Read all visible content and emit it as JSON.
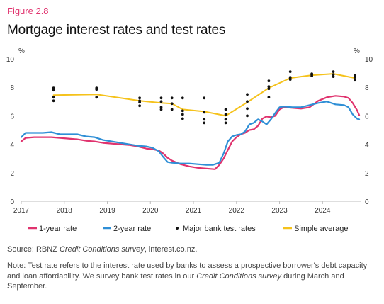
{
  "figure_label": "Figure 2.8",
  "title": "Mortgage interest rates and test rates",
  "source": {
    "prefix": "Source: RBNZ ",
    "italic": "Credit Conditions survey",
    "suffix": ", interest.co.nz."
  },
  "note": {
    "part1": "Note: Test rate refers to the interest rate used by banks to assess a prospective borrower's debt capacity and loan affordability. We survey bank test rates in our ",
    "italic": "Credit Conditions survey",
    "part2": " during March and September."
  },
  "colors": {
    "one_year": "#e0336e",
    "two_year": "#2f8fd6",
    "simple_average": "#f5c21b",
    "test_dots": "#111111",
    "axis": "#bdbdbd"
  },
  "chart_data": {
    "type": "line",
    "ylim": [
      0,
      10
    ],
    "yticks": [
      0,
      2,
      4,
      6,
      8,
      10
    ],
    "y_unit_label_left": "%",
    "y_unit_label_right": "%",
    "xlim": [
      2017.0,
      2024.9
    ],
    "xticks": [
      "2017",
      "2018",
      "2019",
      "2020",
      "2021",
      "2022",
      "2023",
      "2024"
    ],
    "legend_position": "bottom",
    "grid": false,
    "series": [
      {
        "name": "1-year rate",
        "key": "one_year",
        "x": [
          2017.0,
          2017.1,
          2017.3,
          2017.5,
          2017.7,
          2017.9,
          2018.1,
          2018.3,
          2018.5,
          2018.7,
          2018.9,
          2019.1,
          2019.3,
          2019.5,
          2019.7,
          2019.9,
          2020.05,
          2020.2,
          2020.3,
          2020.4,
          2020.5,
          2020.7,
          2020.9,
          2021.1,
          2021.3,
          2021.5,
          2021.6,
          2021.7,
          2021.8,
          2021.9,
          2022.0,
          2022.1,
          2022.2,
          2022.3,
          2022.4,
          2022.5,
          2022.6,
          2022.7,
          2022.8,
          2022.9,
          2023.0,
          2023.1,
          2023.3,
          2023.5,
          2023.7,
          2023.9,
          2024.1,
          2024.3,
          2024.5,
          2024.6,
          2024.7,
          2024.8,
          2024.85
        ],
        "y": [
          4.2,
          4.45,
          4.5,
          4.5,
          4.5,
          4.45,
          4.4,
          4.35,
          4.25,
          4.2,
          4.1,
          4.05,
          4.0,
          3.95,
          3.85,
          3.7,
          3.65,
          3.55,
          3.35,
          3.05,
          2.85,
          2.6,
          2.45,
          2.35,
          2.3,
          2.25,
          2.55,
          3.0,
          3.6,
          4.2,
          4.5,
          4.7,
          4.8,
          5.0,
          5.05,
          5.3,
          5.8,
          5.95,
          5.9,
          6.0,
          6.45,
          6.6,
          6.55,
          6.5,
          6.6,
          7.05,
          7.3,
          7.4,
          7.35,
          7.25,
          6.9,
          6.4,
          6.05
        ]
      },
      {
        "name": "2-year rate",
        "key": "two_year",
        "x": [
          2017.0,
          2017.1,
          2017.3,
          2017.5,
          2017.7,
          2017.9,
          2018.1,
          2018.3,
          2018.5,
          2018.7,
          2018.9,
          2019.1,
          2019.3,
          2019.5,
          2019.7,
          2019.9,
          2020.05,
          2020.2,
          2020.3,
          2020.4,
          2020.5,
          2020.7,
          2020.9,
          2021.1,
          2021.3,
          2021.45,
          2021.6,
          2021.7,
          2021.8,
          2021.9,
          2022.0,
          2022.1,
          2022.2,
          2022.3,
          2022.4,
          2022.5,
          2022.6,
          2022.7,
          2022.8,
          2022.9,
          2023.0,
          2023.1,
          2023.3,
          2023.5,
          2023.7,
          2023.9,
          2024.1,
          2024.3,
          2024.5,
          2024.6,
          2024.7,
          2024.8,
          2024.85
        ],
        "y": [
          4.5,
          4.8,
          4.8,
          4.8,
          4.85,
          4.7,
          4.7,
          4.7,
          4.55,
          4.5,
          4.3,
          4.2,
          4.1,
          4.0,
          3.9,
          3.85,
          3.75,
          3.5,
          3.1,
          2.75,
          2.7,
          2.65,
          2.65,
          2.6,
          2.55,
          2.55,
          2.7,
          3.35,
          4.2,
          4.55,
          4.65,
          4.7,
          4.9,
          5.4,
          5.5,
          5.75,
          5.6,
          5.4,
          5.75,
          6.2,
          6.6,
          6.65,
          6.6,
          6.6,
          6.75,
          6.9,
          7.0,
          6.8,
          6.75,
          6.6,
          6.1,
          5.8,
          5.75
        ]
      },
      {
        "name": "Simple average",
        "key": "simple_average",
        "x": [
          2017.75,
          2018.75,
          2019.75,
          2020.25,
          2020.5,
          2020.75,
          2021.25,
          2021.75,
          2022.25,
          2022.75,
          2023.25,
          2023.75,
          2024.25,
          2024.75
        ],
        "y": [
          7.45,
          7.5,
          7.05,
          6.9,
          6.85,
          6.45,
          6.3,
          6.0,
          6.95,
          7.95,
          8.65,
          8.85,
          8.95,
          8.65
        ]
      }
    ],
    "scatter": {
      "name": "Major bank test rates",
      "key": "test_dots",
      "x": [
        2017.75,
        2017.75,
        2017.75,
        2017.75,
        2018.75,
        2018.75,
        2018.75,
        2019.75,
        2019.75,
        2019.75,
        2019.75,
        2020.25,
        2020.25,
        2020.25,
        2020.25,
        2020.5,
        2020.5,
        2020.5,
        2020.75,
        2020.75,
        2020.75,
        2020.75,
        2021.25,
        2021.25,
        2021.25,
        2021.25,
        2021.75,
        2021.75,
        2021.75,
        2021.75,
        2022.25,
        2022.25,
        2022.25,
        2022.25,
        2022.75,
        2022.75,
        2022.75,
        2022.75,
        2023.25,
        2023.25,
        2023.25,
        2023.25,
        2023.75,
        2023.75,
        2023.75,
        2024.25,
        2024.25,
        2024.25,
        2024.75,
        2024.75,
        2024.75
      ],
      "y": [
        7.95,
        7.8,
        7.3,
        7.05,
        7.95,
        7.85,
        7.3,
        7.25,
        7.05,
        6.95,
        6.7,
        7.25,
        7.0,
        6.6,
        6.45,
        7.25,
        6.85,
        6.45,
        7.25,
        6.35,
        6.1,
        5.8,
        7.25,
        6.25,
        5.75,
        5.5,
        6.45,
        6.1,
        5.75,
        5.5,
        7.5,
        7.0,
        6.5,
        6.0,
        8.45,
        8.05,
        7.9,
        7.3,
        9.1,
        8.7,
        8.6,
        8.55,
        8.95,
        8.9,
        8.8,
        9.1,
        8.9,
        8.75,
        8.85,
        8.7,
        8.5
      ]
    }
  }
}
